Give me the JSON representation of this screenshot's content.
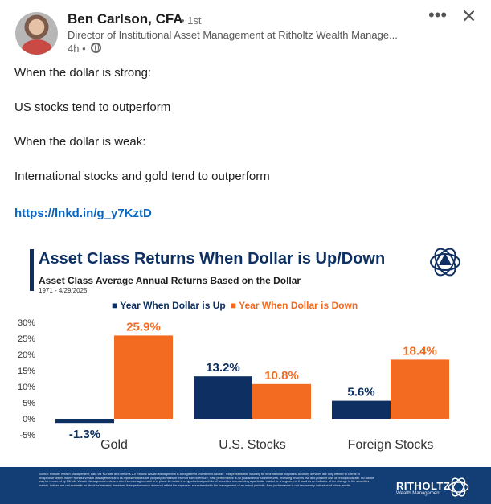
{
  "post": {
    "author": "Ben Carlson, CFA",
    "degree": "• 1st",
    "headline": "Director of Institutional Asset Management at Ritholtz Wealth Manage...",
    "time": "4h •",
    "icons": {
      "privacy": "globe-icon",
      "more": "more-icon",
      "close": "close-icon"
    },
    "lines": [
      "When the dollar is strong:",
      "US stocks tend to outperform",
      "When the dollar is weak:",
      "International stocks and gold tend to outperform"
    ],
    "link": "https://lnkd.in/g_y7KztD"
  },
  "chart_header": {
    "title": "Asset Class Returns When Dollar is Up/Down",
    "subtitle": "Asset Class Average Annual Returns Based on the Dollar",
    "date": "1971 - 4/29/2025"
  },
  "chart_data": {
    "type": "bar",
    "title": "Asset Class Returns When Dollar is Up/Down",
    "categories": [
      "Gold",
      "U.S. Stocks",
      "Foreign Stocks"
    ],
    "series": [
      {
        "name": "Year When Dollar is Up",
        "color": "#0d2f61",
        "values": [
          -1.3,
          13.2,
          5.6
        ],
        "labels": [
          "-1.3%",
          "13.2%",
          "5.6%"
        ]
      },
      {
        "name": "Year When Dollar is Down",
        "color": "#f26b21",
        "values": [
          25.9,
          10.8,
          18.4
        ],
        "labels": [
          "25.9%",
          "10.8%",
          "18.4%"
        ]
      }
    ],
    "y_ticks": [
      "30%",
      "25%",
      "20%",
      "15%",
      "10%",
      "5%",
      "0%",
      "-5%"
    ],
    "ylim": [
      -5,
      30
    ],
    "grid": false,
    "legend": "top-center"
  },
  "footer": {
    "disclaimer": "Source: Ritholtz Wealth Management, data via YCharts and Returns 2.0 Ritholtz Wealth Management is a Registered Investment Adviser. This presentation is solely for informational purposes. Advisory services are only offered to clients or prospective clients where Ritholtz Wealth Management and its representatives are properly licensed or exempt from licensure. Past performance is no guarantee of future returns. Investing involves risk and possible loss of principal capital. No advice may be rendered by Ritholtz Wealth Management unless a client service agreement is in place. An index is a hypothetical portfolio of securities representing a particular market or a segment of it used as an indicator of the change in the securities market. Indices are not available for direct investment; therefore, their performance does not reflect the expenses associated with the management of an actual portfolio. Past performance is not necessarily indicative of future results.",
    "brand": "RITHOLTZ",
    "sub": "Wealth Management"
  }
}
